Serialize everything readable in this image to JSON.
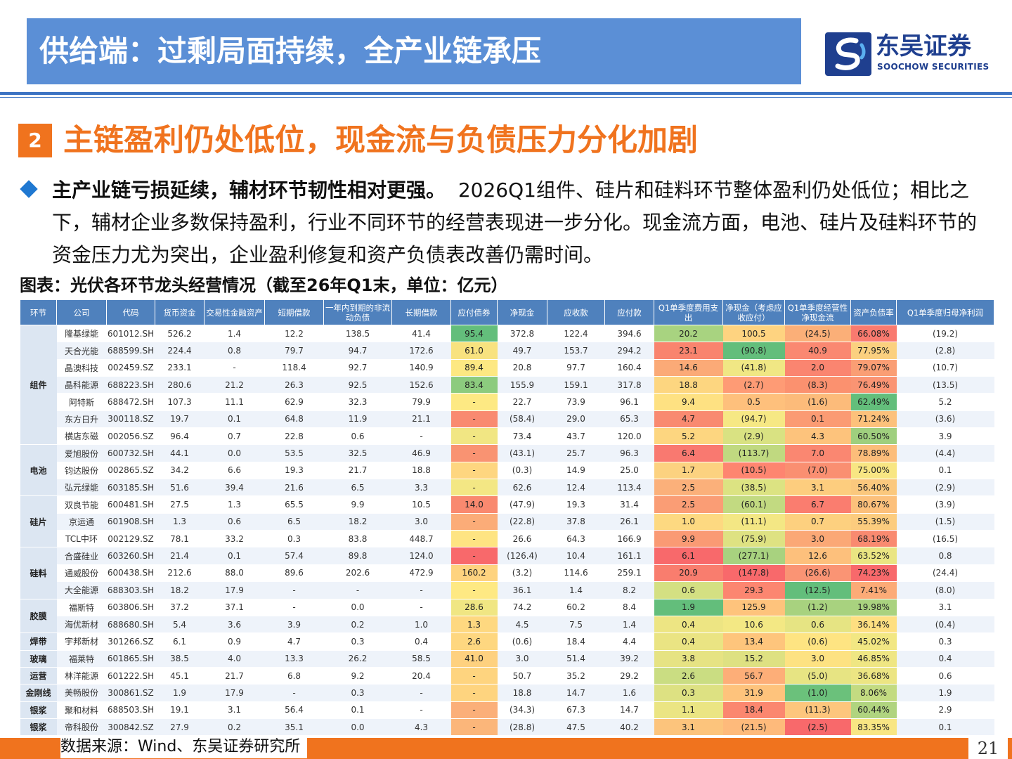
{
  "header": {
    "title": "供给端：过剩局面持续，全产业链承压",
    "logo_cn": "东吴证券",
    "logo_en": "SOOCHOW SECURITIES"
  },
  "section": {
    "number": "2",
    "title": "主链盈利仍处低位，现金流与负债压力分化加剧"
  },
  "paragraph": {
    "bold": "主产业链亏损延续，辅材环节韧性相对更强。",
    "rest": "2026Q1组件、硅片和硅料环节整体盈利仍处低位；相比之下，辅材企业多数保持盈利，行业不同环节的经营表现进一步分化。现金流方面，电池、硅片及硅料环节的资金压力尤为突出，企业盈利修复和资产负债表改善仍需时间。"
  },
  "caption": "图表：光伏各环节龙头经营情况（截至26年Q1末，单位：亿元）",
  "table": {
    "headers": [
      "环节",
      "公司",
      "代码",
      "货币资金",
      "交易性金融资产",
      "短期借款",
      "一年内到期的非流动负债",
      "长期借款",
      "应付债券",
      "净现金",
      "应收款",
      "应付款",
      "Q1单季度费用支出",
      "净现金（考虑应收应付）",
      "Q1单季度经营性净现金流",
      "资产负债率",
      "Q1单季度归母净利润"
    ],
    "segments": [
      {
        "name": "组件",
        "start": 0,
        "span": 7
      },
      {
        "name": "电池",
        "start": 7,
        "span": 3
      },
      {
        "name": "硅片",
        "start": 10,
        "span": 3
      },
      {
        "name": "硅料",
        "start": 13,
        "span": 3
      },
      {
        "name": "胶膜",
        "start": 16,
        "span": 2
      },
      {
        "name": "焊带",
        "start": 18,
        "span": 1
      },
      {
        "name": "玻璃",
        "start": 19,
        "span": 1
      },
      {
        "name": "运营",
        "start": 20,
        "span": 1
      },
      {
        "name": "金刚线",
        "start": 21,
        "span": 1
      },
      {
        "name": "银浆",
        "start": 22,
        "span": 1
      },
      {
        "name": "银浆",
        "start": 23,
        "span": 1
      }
    ],
    "rows": [
      [
        "隆基绿能",
        "601012.SH",
        "526.2",
        "1.4",
        "12.2",
        "138.5",
        "41.4",
        "95.4",
        "372.8",
        "122.4",
        "394.6",
        "20.2",
        "100.5",
        "(24.5)",
        "66.08%",
        "(19.2)"
      ],
      [
        "天合光能",
        "688599.SH",
        "224.4",
        "0.8",
        "79.7",
        "94.7",
        "172.6",
        "61.0",
        "49.7",
        "153.7",
        "294.2",
        "23.1",
        "(90.8)",
        "40.9",
        "77.95%",
        "(2.8)"
      ],
      [
        "晶澳科技",
        "002459.SZ",
        "233.1",
        "-",
        "118.4",
        "92.7",
        "140.9",
        "89.4",
        "20.8",
        "97.7",
        "160.4",
        "14.6",
        "(41.8)",
        "2.0",
        "79.07%",
        "(10.7)"
      ],
      [
        "晶科能源",
        "688223.SH",
        "280.6",
        "21.2",
        "26.3",
        "92.5",
        "152.6",
        "83.4",
        "155.9",
        "159.1",
        "317.8",
        "18.8",
        "(2.7)",
        "(8.3)",
        "76.49%",
        "(13.5)"
      ],
      [
        "阿特斯",
        "688472.SH",
        "107.3",
        "11.1",
        "62.9",
        "32.3",
        "79.9",
        "-",
        "22.7",
        "73.9",
        "96.1",
        "9.4",
        "0.5",
        "(1.6)",
        "62.49%",
        "5.2"
      ],
      [
        "东方日升",
        "300118.SZ",
        "19.7",
        "0.1",
        "64.8",
        "11.9",
        "21.1",
        "-",
        "(58.4)",
        "29.0",
        "65.3",
        "4.7",
        "(94.7)",
        "0.1",
        "71.24%",
        "(3.6)"
      ],
      [
        "横店东磁",
        "002056.SZ",
        "96.4",
        "0.7",
        "22.8",
        "0.6",
        "-",
        "-",
        "73.4",
        "43.7",
        "120.0",
        "5.2",
        "(2.9)",
        "4.3",
        "60.50%",
        "3.9"
      ],
      [
        "爱旭股份",
        "600732.SH",
        "44.1",
        "0.0",
        "53.5",
        "32.5",
        "46.9",
        "-",
        "(43.1)",
        "25.7",
        "96.3",
        "6.4",
        "(113.7)",
        "7.0",
        "78.89%",
        "(4.4)"
      ],
      [
        "钧达股份",
        "002865.SZ",
        "34.2",
        "6.6",
        "19.3",
        "21.7",
        "18.8",
        "-",
        "(0.3)",
        "14.9",
        "25.0",
        "1.7",
        "(10.5)",
        "(7.0)",
        "75.00%",
        "0.1"
      ],
      [
        "弘元绿能",
        "603185.SH",
        "51.6",
        "39.4",
        "21.6",
        "6.5",
        "3.3",
        "-",
        "62.6",
        "12.4",
        "113.4",
        "2.5",
        "(38.5)",
        "3.1",
        "56.40%",
        "(2.9)"
      ],
      [
        "双良节能",
        "600481.SH",
        "27.5",
        "1.3",
        "65.5",
        "9.9",
        "10.5",
        "14.0",
        "(47.9)",
        "19.3",
        "31.4",
        "2.5",
        "(60.1)",
        "6.7",
        "80.67%",
        "(3.9)"
      ],
      [
        "京运通",
        "601908.SH",
        "1.3",
        "0.6",
        "6.5",
        "18.2",
        "3.0",
        "-",
        "(22.8)",
        "37.8",
        "26.1",
        "1.0",
        "(11.1)",
        "0.7",
        "55.39%",
        "(1.5)"
      ],
      [
        "TCL中环",
        "002129.SZ",
        "78.1",
        "33.2",
        "0.3",
        "83.8",
        "448.7",
        "-",
        "26.6",
        "64.3",
        "166.9",
        "9.9",
        "(75.9)",
        "3.0",
        "68.19%",
        "(16.5)"
      ],
      [
        "合盛硅业",
        "603260.SH",
        "21.4",
        "0.1",
        "57.4",
        "89.8",
        "124.0",
        "-",
        "(126.4)",
        "10.4",
        "161.1",
        "6.1",
        "(277.1)",
        "12.6",
        "63.52%",
        "0.8"
      ],
      [
        "通威股份",
        "600438.SH",
        "212.6",
        "88.0",
        "89.6",
        "202.6",
        "472.9",
        "160.2",
        "(3.2)",
        "114.6",
        "259.1",
        "20.9",
        "(147.8)",
        "(26.6)",
        "74.23%",
        "(24.4)"
      ],
      [
        "大全能源",
        "688303.SH",
        "18.2",
        "17.9",
        "-",
        "-",
        "-",
        "-",
        "36.1",
        "1.4",
        "8.2",
        "0.6",
        "29.3",
        "(12.5)",
        "7.41%",
        "(8.0)"
      ],
      [
        "福斯特",
        "603806.SH",
        "37.2",
        "37.1",
        "-",
        "0.0",
        "-",
        "28.6",
        "74.2",
        "60.2",
        "8.4",
        "1.9",
        "125.9",
        "(1.2)",
        "19.98%",
        "3.1"
      ],
      [
        "海优新材",
        "688680.SH",
        "5.4",
        "3.6",
        "3.9",
        "0.2",
        "1.0",
        "1.3",
        "4.5",
        "7.5",
        "1.4",
        "0.4",
        "10.6",
        "0.6",
        "36.14%",
        "(0.4)"
      ],
      [
        "宇邦新材",
        "301266.SZ",
        "6.1",
        "0.9",
        "4.7",
        "0.3",
        "0.4",
        "2.6",
        "(0.6)",
        "18.4",
        "4.4",
        "0.4",
        "13.4",
        "(0.6)",
        "45.02%",
        "0.3"
      ],
      [
        "福莱特",
        "601865.SH",
        "38.5",
        "4.0",
        "13.3",
        "26.2",
        "58.5",
        "41.0",
        "3.0",
        "51.4",
        "39.2",
        "3.8",
        "15.2",
        "3.0",
        "46.85%",
        "0.4"
      ],
      [
        "林洋能源",
        "601222.SH",
        "45.1",
        "21.7",
        "6.8",
        "9.2",
        "20.4",
        "-",
        "50.7",
        "35.2",
        "29.2",
        "2.6",
        "56.7",
        "(5.0)",
        "36.68%",
        "0.6"
      ],
      [
        "美畅股份",
        "300861.SZ",
        "1.9",
        "17.9",
        "-",
        "0.3",
        "-",
        "-",
        "18.8",
        "14.7",
        "1.6",
        "0.3",
        "31.9",
        "(1.0)",
        "8.06%",
        "1.9"
      ],
      [
        "聚和材料",
        "688503.SH",
        "19.1",
        "3.1",
        "56.4",
        "0.1",
        "-",
        "-",
        "(34.3)",
        "67.3",
        "14.7",
        "1.1",
        "18.4",
        "(11.3)",
        "60.44%",
        "2.9"
      ],
      [
        "帝科股份",
        "300842.SZ",
        "27.9",
        "0.2",
        "35.1",
        "0.0",
        "4.3",
        "-",
        "(28.8)",
        "47.5",
        "40.2",
        "3.1",
        "(21.5)",
        "(2.5)",
        "83.35%",
        "0.1"
      ]
    ],
    "heat_colors": {
      "net_cash": [
        "#63be7b",
        "#f8e27f",
        "#fde882",
        "#8ccb7e",
        "#fde983",
        "#f98a70",
        "#f1e683",
        "#f99372",
        "#fed680",
        "#f3e784",
        "#f9896f",
        "#fbac78",
        "#fee482",
        "#f8696b",
        "#fed37f",
        "#fee983",
        "#f0e683",
        "#fed880",
        "#fed780",
        "#fed17f",
        "#fed47f",
        "#fed47f",
        "#fbaf79",
        "#fbb67a"
      ],
      "net_cash_ar_ap": [
        "#a8d380",
        "#f9846e",
        "#fbaa77",
        "#fdd680",
        "#fee182",
        "#f98a70",
        "#fdd680",
        "#f97970",
        "#fcd280",
        "#fbb07a",
        "#fa9d75",
        "#fdd981",
        "#fa9a74",
        "#f8696b",
        "#f97d6e",
        "#d4e082",
        "#63be7b",
        "#ede583",
        "#eae483",
        "#e6e383",
        "#cadd82",
        "#dde182",
        "#ebe583",
        "#fcc47c"
      ],
      "op_cf": [
        "#fed380",
        "#63be7b",
        "#f0e784",
        "#fe9b75",
        "#fec07c",
        "#f6e884",
        "#d9e282",
        "#c0d980",
        "#fe8570",
        "#dce382",
        "#c2da81",
        "#f3e784",
        "#dee282",
        "#a8d27f",
        "#f8696b",
        "#fc8670",
        "#fec37c",
        "#f3e884",
        "#fec57c",
        "#dee182",
        "#fdae78",
        "#fec37c",
        "#fb876f",
        "#feba7b"
      ],
      "debt_ratio": [
        "#fbaf78",
        "#fa8871",
        "#fa8570",
        "#fb916f",
        "#fcbb7a",
        "#fb9b73",
        "#fdc37c",
        "#fa8771",
        "#fa8f71",
        "#fdcd7e",
        "#fa7d6f",
        "#fdd07f",
        "#fba876",
        "#fdc07c",
        "#fa9474",
        "#63be7b",
        "#a8d27f",
        "#e6e483",
        "#fee482",
        "#fde282",
        "#e7e483",
        "#6bc17b",
        "#fdc67d",
        "#f8696b"
      ],
      "net_profit": [
        "#f97a6f",
        "#fbd07f",
        "#fa9e74",
        "#fa9473",
        "#63be7b",
        "#fcc17b",
        "#9fcf7e",
        "#fcbd7a",
        "#f8e683",
        "#fbc87d",
        "#fcc07b",
        "#fccc7e",
        "#f98a70",
        "#eae582",
        "#f8696b",
        "#fcab77",
        "#a9d27f",
        "#fedf81",
        "#f2e783",
        "#efe683",
        "#ece583",
        "#c3db81",
        "#b0d47f",
        "#f8e683"
      ]
    },
    "heat_cols": [
      8,
      12,
      13,
      14,
      15
    ]
  },
  "footer": {
    "source": "数据来源：Wind、东吴证券研究所",
    "page": "21"
  }
}
